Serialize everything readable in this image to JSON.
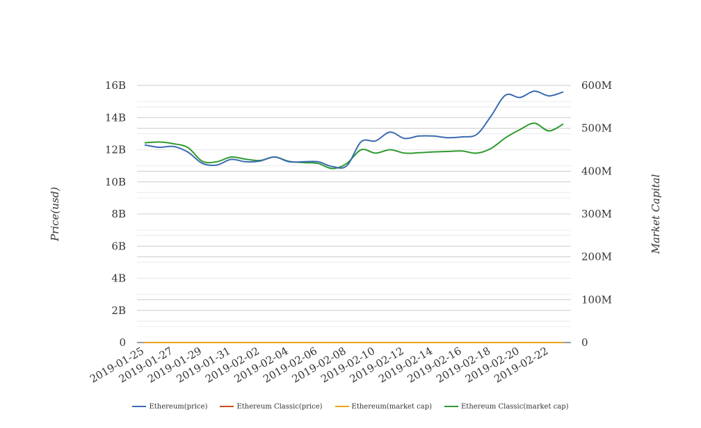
{
  "chart_data": {
    "type": "line",
    "title": "",
    "x": [
      "2019-01-25",
      "2019-01-26",
      "2019-01-27",
      "2019-01-28",
      "2019-01-29",
      "2019-01-30",
      "2019-01-31",
      "2019-02-01",
      "2019-02-02",
      "2019-02-03",
      "2019-02-04",
      "2019-02-05",
      "2019-02-06",
      "2019-02-07",
      "2019-02-08",
      "2019-02-09",
      "2019-02-10",
      "2019-02-11",
      "2019-02-12",
      "2019-02-13",
      "2019-02-14",
      "2019-02-15",
      "2019-02-16",
      "2019-02-17",
      "2019-02-18",
      "2019-02-19",
      "2019-02-20",
      "2019-02-21",
      "2019-02-22",
      "2019-02-23"
    ],
    "x_tick_labels": [
      "2019-01-25",
      "2019-01-27",
      "2019-01-29",
      "2019-01-31",
      "2019-02-02",
      "2019-02-04",
      "2019-02-06",
      "2019-02-08",
      "2019-02-10",
      "2019-02-12",
      "2019-02-14",
      "2019-02-16",
      "2019-02-18",
      "2019-02-20",
      "2019-02-22"
    ],
    "y_left": {
      "label": "Price(usd)",
      "ticks": [
        "0",
        "2B",
        "4B",
        "6B",
        "8B",
        "10B",
        "12B",
        "14B",
        "16B"
      ],
      "range": [
        0,
        16000000000
      ]
    },
    "y_right": {
      "label": "Market Capital",
      "ticks": [
        "0",
        "100M",
        "200M",
        "300M",
        "400M",
        "500M",
        "600M"
      ],
      "range": [
        0,
        600000000
      ]
    },
    "grid": true,
    "legend_position": "bottom",
    "series": [
      {
        "name": "Ethereum(price)",
        "color": "#3a6ab0",
        "axis": "left",
        "values": [
          12300000000,
          12150000000,
          12200000000,
          11850000000,
          11150000000,
          11050000000,
          11400000000,
          11250000000,
          11300000000,
          11550000000,
          11250000000,
          11250000000,
          11250000000,
          10950000000,
          11000000000,
          12500000000,
          12550000000,
          13100000000,
          12700000000,
          12850000000,
          12850000000,
          12750000000,
          12800000000,
          12950000000,
          14100000000,
          15400000000,
          15250000000,
          15650000000,
          15350000000,
          15600000000
        ]
      },
      {
        "name": "Ethereum Classic(price)",
        "color": "#c9501c",
        "axis": "right",
        "values": [
          4.4,
          4.4,
          4.4,
          4.2,
          3.9,
          3.9,
          4.0,
          4.0,
          4.0,
          4.1,
          4.0,
          4.0,
          4.0,
          3.9,
          3.9,
          4.4,
          4.3,
          4.4,
          4.3,
          4.3,
          4.3,
          4.3,
          4.3,
          4.3,
          4.5,
          4.7,
          4.8,
          4.9,
          4.7,
          4.8
        ]
      },
      {
        "name": "Ethereum(market cap)",
        "color": "#e8a51a",
        "axis": "left",
        "values": [
          12.3,
          12.2,
          12.2,
          11.9,
          11.2,
          11.1,
          11.4,
          11.3,
          11.3,
          11.6,
          11.3,
          11.3,
          11.3,
          11.0,
          11.0,
          12.5,
          12.6,
          13.1,
          12.7,
          12.9,
          12.9,
          12.8,
          12.8,
          13.0,
          14.1,
          15.4,
          15.3,
          15.7,
          15.4,
          15.6
        ]
      },
      {
        "name": "Ethereum Classic(market cap)",
        "color": "#2e9a2e",
        "axis": "right",
        "values": [
          466000000,
          468000000,
          464000000,
          455000000,
          423000000,
          422000000,
          433000000,
          428000000,
          425000000,
          433000000,
          423000000,
          420000000,
          418000000,
          406000000,
          418000000,
          450000000,
          442000000,
          450000000,
          442000000,
          443000000,
          445000000,
          446000000,
          447000000,
          442000000,
          453000000,
          478000000,
          497000000,
          512000000,
          494000000,
          510000000
        ]
      }
    ]
  }
}
